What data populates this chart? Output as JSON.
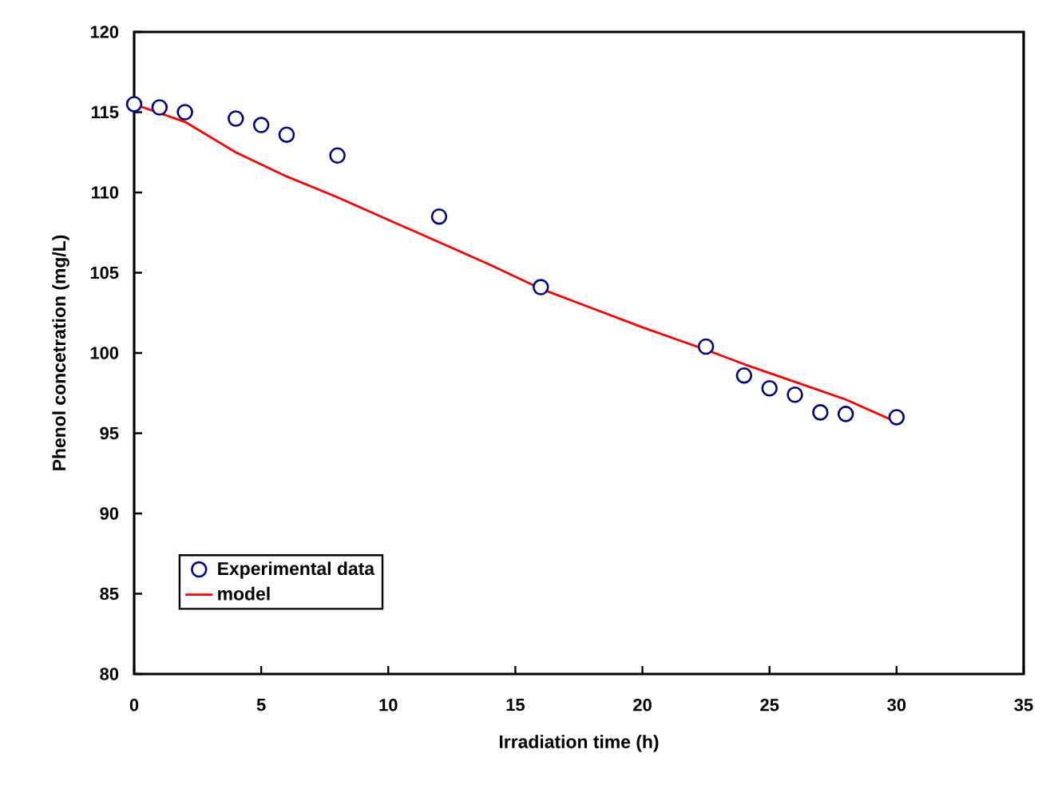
{
  "chart_data": {
    "type": "scatter",
    "xlabel": "Irradiation time (h)",
    "ylabel": "Phenol concetration (mg/L)",
    "xlim": [
      0,
      35
    ],
    "xticks": [
      0,
      5,
      10,
      15,
      20,
      25,
      30,
      35
    ],
    "ylim": [
      80,
      120
    ],
    "yticks": [
      80,
      85,
      90,
      95,
      100,
      105,
      110,
      115,
      120
    ],
    "legend": "bottom left",
    "grid": false,
    "series": [
      {
        "name": "Experimental data",
        "marker": "circle",
        "color": "#000080",
        "x": [
          0,
          1,
          2,
          4,
          5,
          6,
          8,
          12,
          16,
          22.5,
          24,
          25,
          26,
          27,
          28,
          30
        ],
        "values": [
          115.5,
          115.3,
          115.0,
          114.6,
          114.2,
          113.6,
          112.3,
          108.5,
          104.1,
          100.4,
          98.6,
          97.8,
          97.4,
          96.3,
          96.2,
          96.0
        ]
      },
      {
        "name": "model",
        "type": "line",
        "marker": "none",
        "line_style": "solid",
        "color": "#ff0000",
        "x": [
          0,
          2,
          4,
          6,
          8,
          10,
          12,
          14,
          16,
          18,
          20,
          22.5,
          24,
          26,
          28,
          30
        ],
        "values": [
          115.5,
          114.4,
          112.5,
          111.0,
          109.7,
          108.3,
          106.9,
          105.5,
          104.0,
          102.8,
          101.6,
          100.2,
          99.3,
          98.2,
          97.1,
          95.7
        ]
      }
    ]
  }
}
